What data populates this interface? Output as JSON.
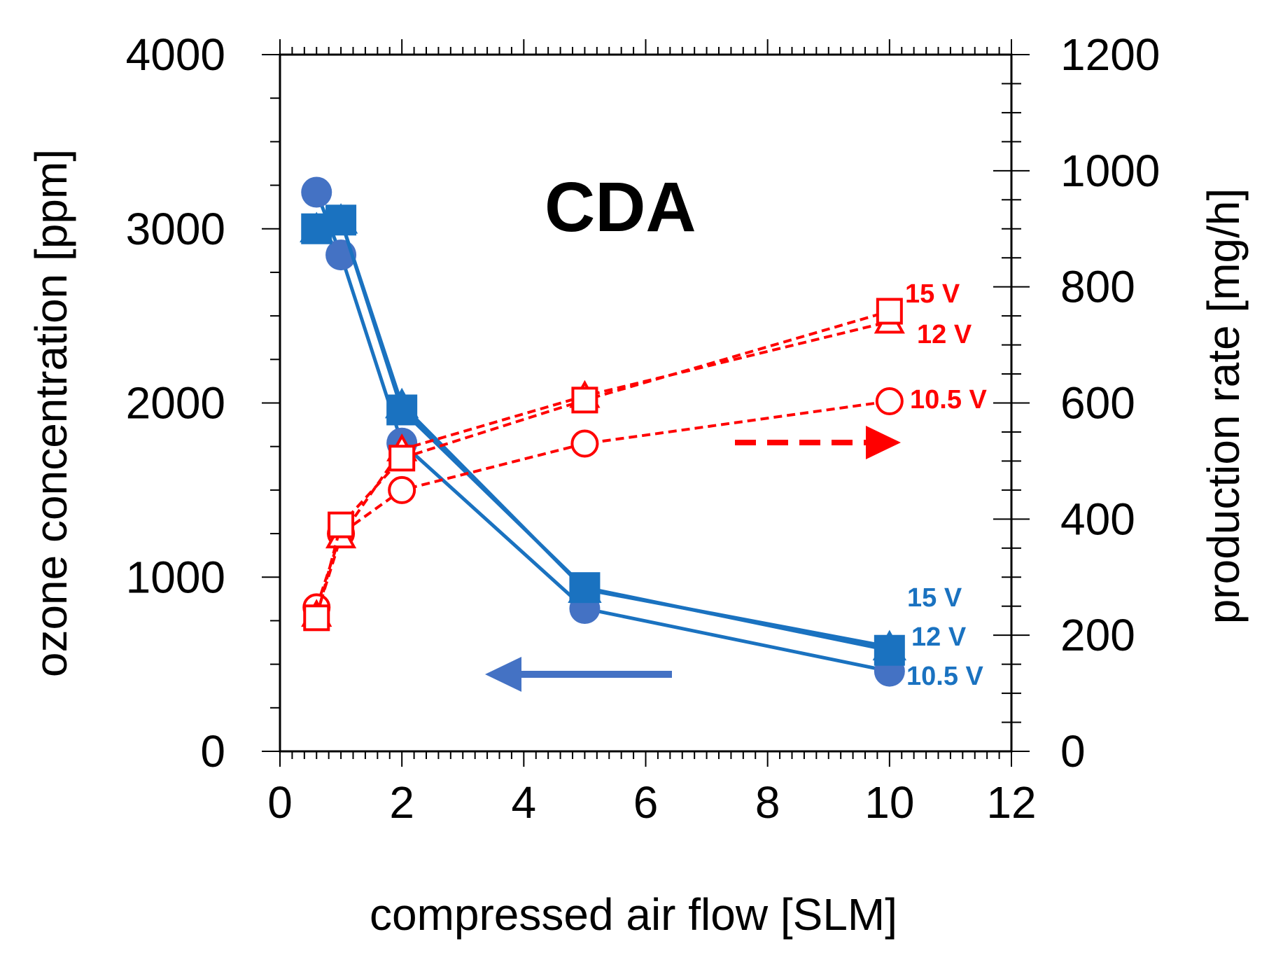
{
  "chart_data": {
    "type": "line",
    "title": "CDA",
    "xlabel": "compressed air flow [SLM]",
    "ylabel": "ozone concentration [ppm]",
    "y2label": "production rate  [mg/h]",
    "xlim": [
      0,
      12
    ],
    "ylim": [
      0,
      4000
    ],
    "y2lim": [
      0,
      1200
    ],
    "xticks": [
      "0",
      "2",
      "4",
      "6",
      "8",
      "10",
      "12"
    ],
    "yticks": [
      "0",
      "1000",
      "2000",
      "3000",
      "4000"
    ],
    "y2ticks": [
      "0",
      "200",
      "400",
      "600",
      "800",
      "1000",
      "1200"
    ],
    "grid": false,
    "colors": {
      "concentration": "#1a72c0",
      "concentration_circle": "#4472c4",
      "production": "#ff0000",
      "left_arrow": "#4472c4",
      "right_arrow": "#ff0000"
    },
    "concentration_series": [
      {
        "name": "15 V",
        "axis": "left",
        "marker": "square",
        "x": [
          0.6,
          1,
          2,
          5,
          10
        ],
        "y": [
          3000,
          3050,
          1960,
          940,
          580
        ]
      },
      {
        "name": "12 V",
        "axis": "left",
        "marker": "triangle",
        "x": [
          0.6,
          1,
          2,
          5,
          10
        ],
        "y": [
          3000,
          3050,
          1990,
          930,
          600
        ]
      },
      {
        "name": "10.5 V",
        "axis": "left",
        "marker": "circle",
        "x": [
          0.6,
          1,
          2,
          5,
          10
        ],
        "y": [
          3210,
          2850,
          1770,
          820,
          460
        ]
      }
    ],
    "production_series": [
      {
        "name": "15 V",
        "axis": "right",
        "marker": "square",
        "x": [
          0.6,
          1,
          2,
          5,
          10
        ],
        "y": [
          230,
          390,
          505,
          605,
          758
        ]
      },
      {
        "name": "12 V",
        "axis": "right",
        "marker": "triangle",
        "x": [
          0.6,
          1,
          2,
          5,
          10
        ],
        "y": [
          235,
          370,
          520,
          612,
          740
        ]
      },
      {
        "name": "10.5 V",
        "axis": "right",
        "marker": "circle",
        "x": [
          0.6,
          1,
          2,
          5,
          10
        ],
        "y": [
          248,
          375,
          450,
          530,
          603
        ]
      }
    ],
    "annotations": {
      "red_labels": [
        "15 V",
        "12 V",
        "10.5 V"
      ],
      "blue_labels": [
        "15 V",
        "12 V",
        "10.5 V"
      ]
    }
  }
}
